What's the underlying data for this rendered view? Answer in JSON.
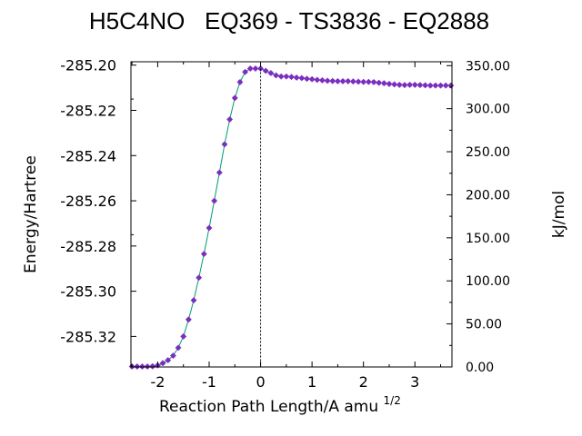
{
  "chart_data": {
    "type": "line",
    "title": "H5C4NO   EQ369 - TS3836 - EQ2888",
    "xlabel": "Reaction Path Length/A amu",
    "xlabel_superscript": "1/2",
    "ylabel_left": "Energy/Hartree",
    "ylabel_right": "kJ/mol",
    "xlim": [
      -2.52,
      3.72
    ],
    "ylim_left": [
      -285.3335,
      -285.1985
    ],
    "ylim_right": [
      0.0,
      354.5
    ],
    "x_ticks": [
      "-2",
      "-1",
      "0",
      "1",
      "2",
      "3"
    ],
    "x_tick_values": [
      -2,
      -1,
      0,
      1,
      2,
      3
    ],
    "y_left_ticks": [
      "-285.20",
      "-285.22",
      "-285.24",
      "-285.26",
      "-285.28",
      "-285.30",
      "-285.32"
    ],
    "y_left_tick_values": [
      -285.2,
      -285.22,
      -285.24,
      -285.26,
      -285.28,
      -285.3,
      -285.32
    ],
    "y_right_ticks": [
      "0.00",
      "50.00",
      "100.00",
      "150.00",
      "200.00",
      "250.00",
      "300.00",
      "350.00"
    ],
    "y_right_tick_values": [
      0,
      50,
      100,
      150,
      200,
      250,
      300,
      350
    ],
    "ts_line_x": 0.0,
    "grid": false,
    "line_color": "#009b77",
    "marker_color": "#7b2fbf",
    "series": [
      {
        "x": [
          -2.5,
          -2.4,
          -2.3,
          -2.2,
          -2.1,
          -2.0,
          -1.9,
          -1.8,
          -1.7,
          -1.6,
          -1.5,
          -1.4,
          -1.3,
          -1.2,
          -1.1,
          -1.0,
          -0.9,
          -0.8,
          -0.7,
          -0.6,
          -0.5,
          -0.4,
          -0.3,
          -0.2,
          -0.1,
          0.0,
          0.1,
          0.2,
          0.3,
          0.4,
          0.5,
          0.6,
          0.7,
          0.8,
          0.9,
          1.0,
          1.1,
          1.2,
          1.3,
          1.4,
          1.5,
          1.6,
          1.7,
          1.8,
          1.9,
          2.0,
          2.1,
          2.2,
          2.3,
          2.4,
          2.5,
          2.6,
          2.7,
          2.8,
          2.9,
          3.0,
          3.1,
          3.2,
          3.3,
          3.4,
          3.5,
          3.6,
          3.7
        ],
        "y": [
          -285.3333,
          -285.3333,
          -285.3333,
          -285.3333,
          -285.3332,
          -285.3328,
          -285.3318,
          -285.3305,
          -285.3285,
          -285.325,
          -285.32,
          -285.3125,
          -285.304,
          -285.294,
          -285.2835,
          -285.272,
          -285.26,
          -285.2475,
          -285.235,
          -285.224,
          -285.2145,
          -285.2075,
          -285.203,
          -285.2015,
          -285.2015,
          -285.2015,
          -285.2025,
          -285.2035,
          -285.2045,
          -285.205,
          -285.205,
          -285.2052,
          -285.2055,
          -285.2057,
          -285.206,
          -285.2062,
          -285.2065,
          -285.2067,
          -285.2069,
          -285.207,
          -285.2071,
          -285.2071,
          -285.2071,
          -285.2072,
          -285.2073,
          -285.2074,
          -285.2074,
          -285.2075,
          -285.2078,
          -285.208,
          -285.2083,
          -285.2085,
          -285.2087,
          -285.2088,
          -285.2087,
          -285.2087,
          -285.2088,
          -285.2089,
          -285.209,
          -285.209,
          -285.209,
          -285.209,
          -285.209
        ]
      }
    ]
  }
}
